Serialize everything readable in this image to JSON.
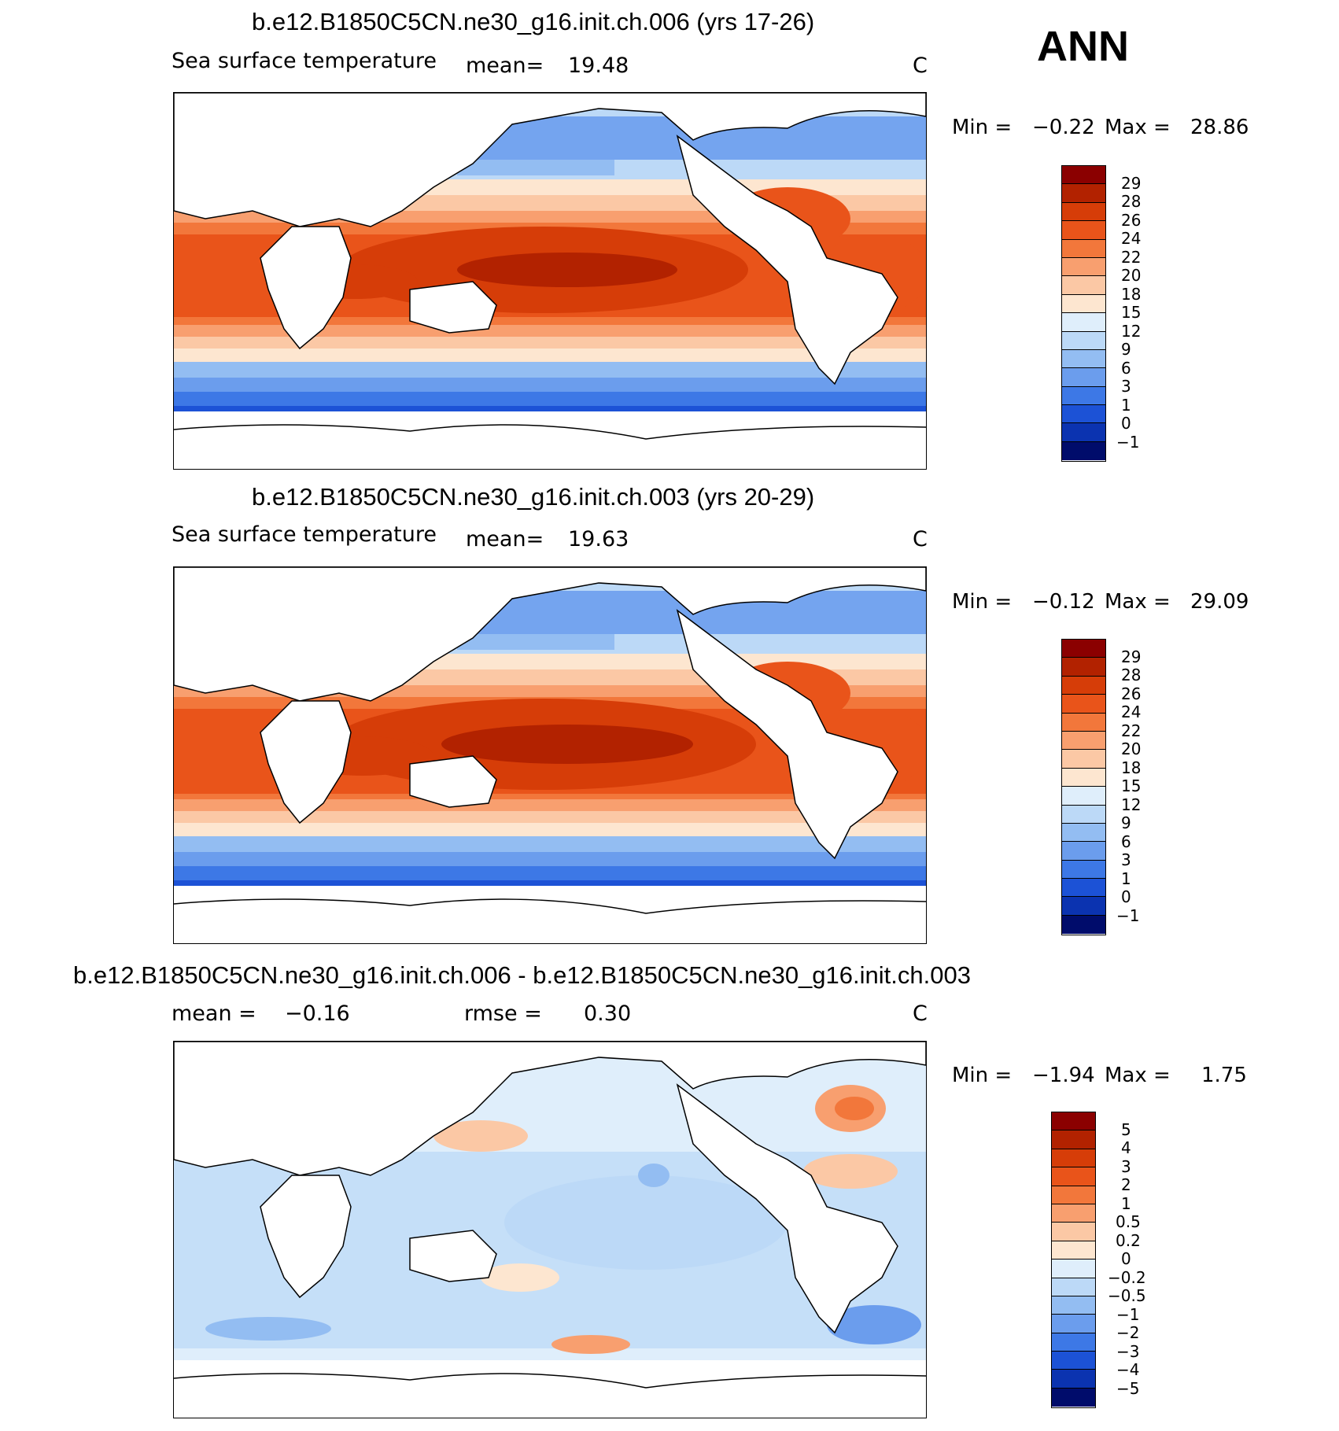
{
  "season": "ANN",
  "panels": [
    {
      "title": "b.e12.B1850C5CN.ne30_g16.init.ch.006 (yrs 17-26)",
      "variable": "Sea surface temperature",
      "stat1_label": "mean=",
      "stat1_value": "19.48",
      "units": "C",
      "min_label": "Min =",
      "min_value": "−0.22",
      "max_label": "Max =",
      "max_value": "28.86",
      "colorbar_labels": [
        "29",
        "28",
        "26",
        "24",
        "22",
        "20",
        "18",
        "15",
        "12",
        "9",
        "6",
        "3",
        "1",
        "0",
        "−1"
      ]
    },
    {
      "title": "b.e12.B1850C5CN.ne30_g16.init.ch.003 (yrs 20-29)",
      "variable": "Sea surface temperature",
      "stat1_label": "mean=",
      "stat1_value": "19.63",
      "units": "C",
      "min_label": "Min =",
      "min_value": "−0.12",
      "max_label": "Max =",
      "max_value": "29.09",
      "colorbar_labels": [
        "29",
        "28",
        "26",
        "24",
        "22",
        "20",
        "18",
        "15",
        "12",
        "9",
        "6",
        "3",
        "1",
        "0",
        "−1"
      ]
    },
    {
      "title": "b.e12.B1850C5CN.ne30_g16.init.ch.006 - b.e12.B1850C5CN.ne30_g16.init.ch.003",
      "stat1_label": "mean =",
      "stat1_value": "−0.16",
      "stat2_label": "rmse =",
      "stat2_value": "0.30",
      "units": "C",
      "min_label": "Min =",
      "min_value": "−1.94",
      "max_label": "Max =",
      "max_value": "1.75",
      "colorbar_labels": [
        "5",
        "4",
        "3",
        "2",
        "1",
        "0.5",
        "0.2",
        "0",
        "−0.2",
        "−0.5",
        "−1",
        "−2",
        "−3",
        "−4",
        "−5"
      ]
    }
  ],
  "colors": {
    "sst_palette": [
      "#8b0000",
      "#b22200",
      "#d63d08",
      "#e9541a",
      "#f2773b",
      "#f89f6f",
      "#fbc8a5",
      "#fde6d0",
      "#dfeefb",
      "#bcd9f7",
      "#93bdf2",
      "#6b9ded",
      "#3d78e6",
      "#1c52d6",
      "#0b33b0",
      "#031b86",
      "#000c6b"
    ],
    "diff_palette": [
      "#8b0000",
      "#b22200",
      "#d63d08",
      "#e9541a",
      "#f2773b",
      "#f89f6f",
      "#fbc8a5",
      "#fde6d0",
      "#dfeefb",
      "#bcd9f7",
      "#93bdf2",
      "#6b9ded",
      "#3d78e6",
      "#1c52d6",
      "#0b33b0",
      "#031b86",
      "#000c6b"
    ]
  }
}
